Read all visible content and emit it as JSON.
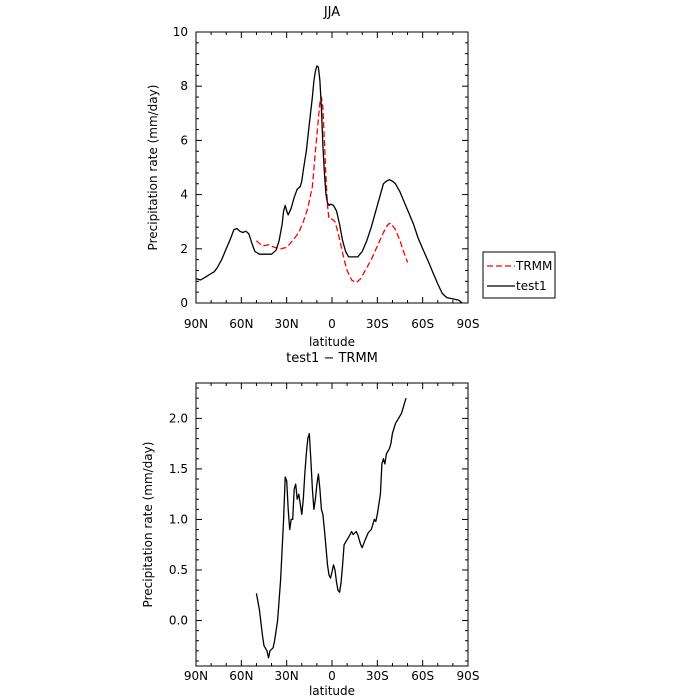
{
  "chart_data": [
    {
      "type": "line",
      "title": "JJA",
      "xlabel": "latitude",
      "ylabel": "Precipitation rate (mm/day)",
      "xlim": [
        90,
        -90
      ],
      "ylim": [
        0,
        10
      ],
      "x_ticks": [
        {
          "v": 90,
          "label": "90N"
        },
        {
          "v": 60,
          "label": "60N"
        },
        {
          "v": 30,
          "label": "30N"
        },
        {
          "v": 0,
          "label": "0"
        },
        {
          "v": -30,
          "label": "30S"
        },
        {
          "v": -60,
          "label": "60S"
        },
        {
          "v": -90,
          "label": "90S"
        }
      ],
      "y_ticks": [
        0,
        2,
        4,
        6,
        8,
        10
      ],
      "legend": "right",
      "series": [
        {
          "name": "TRMM",
          "color": "#ff0000",
          "dash": "dashed",
          "points": [
            [
              50,
              2.3
            ],
            [
              46,
              2.1
            ],
            [
              42,
              2.15
            ],
            [
              38,
              2.05
            ],
            [
              34,
              2.0
            ],
            [
              30,
              2.05
            ],
            [
              26,
              2.3
            ],
            [
              22,
              2.6
            ],
            [
              19,
              3.0
            ],
            [
              16,
              3.5
            ],
            [
              13,
              4.3
            ],
            [
              11,
              5.6
            ],
            [
              9,
              6.8
            ],
            [
              8,
              7.4
            ],
            [
              7,
              7.6
            ],
            [
              6,
              7.2
            ],
            [
              5,
              6.0
            ],
            [
              4,
              4.6
            ],
            [
              3,
              3.6
            ],
            [
              2,
              3.1
            ],
            [
              0,
              3.1
            ],
            [
              -2,
              3.0
            ],
            [
              -4,
              2.6
            ],
            [
              -6,
              2.1
            ],
            [
              -8,
              1.6
            ],
            [
              -10,
              1.2
            ],
            [
              -13,
              0.85
            ],
            [
              -16,
              0.75
            ],
            [
              -19,
              0.9
            ],
            [
              -22,
              1.2
            ],
            [
              -26,
              1.6
            ],
            [
              -30,
              2.1
            ],
            [
              -34,
              2.6
            ],
            [
              -37,
              2.9
            ],
            [
              -39,
              2.95
            ],
            [
              -42,
              2.7
            ],
            [
              -45,
              2.3
            ],
            [
              -48,
              1.8
            ],
            [
              -50,
              1.5
            ]
          ]
        },
        {
          "name": "test1",
          "color": "#000000",
          "dash": "solid",
          "points": [
            [
              90,
              0.9
            ],
            [
              87,
              0.85
            ],
            [
              84,
              0.95
            ],
            [
              81,
              1.05
            ],
            [
              78,
              1.15
            ],
            [
              76,
              1.3
            ],
            [
              73,
              1.6
            ],
            [
              70,
              2.0
            ],
            [
              67,
              2.4
            ],
            [
              65,
              2.7
            ],
            [
              63,
              2.75
            ],
            [
              61,
              2.65
            ],
            [
              59,
              2.6
            ],
            [
              57,
              2.65
            ],
            [
              55,
              2.55
            ],
            [
              53,
              2.2
            ],
            [
              51,
              1.9
            ],
            [
              48,
              1.8
            ],
            [
              44,
              1.8
            ],
            [
              40,
              1.8
            ],
            [
              37,
              1.95
            ],
            [
              35,
              2.3
            ],
            [
              33,
              2.9
            ],
            [
              32,
              3.4
            ],
            [
              31,
              3.6
            ],
            [
              30,
              3.4
            ],
            [
              29,
              3.25
            ],
            [
              27,
              3.5
            ],
            [
              25,
              3.9
            ],
            [
              23,
              4.2
            ],
            [
              21,
              4.3
            ],
            [
              20,
              4.5
            ],
            [
              19,
              4.9
            ],
            [
              17,
              5.6
            ],
            [
              15,
              6.6
            ],
            [
              13,
              7.6
            ],
            [
              12,
              8.2
            ],
            [
              11,
              8.55
            ],
            [
              10,
              8.75
            ],
            [
              9,
              8.7
            ],
            [
              8,
              8.2
            ],
            [
              7,
              7.2
            ],
            [
              6,
              5.8
            ],
            [
              5,
              4.8
            ],
            [
              4,
              4.0
            ],
            [
              3,
              3.7
            ],
            [
              2,
              3.6
            ],
            [
              1,
              3.65
            ],
            [
              -1,
              3.6
            ],
            [
              -3,
              3.4
            ],
            [
              -5,
              2.9
            ],
            [
              -7,
              2.3
            ],
            [
              -9,
              1.9
            ],
            [
              -11,
              1.7
            ],
            [
              -14,
              1.7
            ],
            [
              -17,
              1.7
            ],
            [
              -20,
              1.9
            ],
            [
              -23,
              2.3
            ],
            [
              -26,
              2.8
            ],
            [
              -29,
              3.4
            ],
            [
              -32,
              4.0
            ],
            [
              -34,
              4.4
            ],
            [
              -36,
              4.5
            ],
            [
              -38,
              4.55
            ],
            [
              -40,
              4.5
            ],
            [
              -42,
              4.4
            ],
            [
              -45,
              4.1
            ],
            [
              -48,
              3.7
            ],
            [
              -51,
              3.3
            ],
            [
              -54,
              2.9
            ],
            [
              -57,
              2.4
            ],
            [
              -60,
              2.0
            ],
            [
              -64,
              1.5
            ],
            [
              -67,
              1.1
            ],
            [
              -70,
              0.7
            ],
            [
              -73,
              0.35
            ],
            [
              -76,
              0.2
            ],
            [
              -80,
              0.15
            ],
            [
              -84,
              0.1
            ],
            [
              -86,
              0.0
            ]
          ]
        }
      ]
    },
    {
      "type": "line",
      "title": "test1 − TRMM",
      "xlabel": "latitude",
      "ylabel": "Precipitation rate (mm/day)",
      "xlim": [
        90,
        -90
      ],
      "ylim": [
        -0.45,
        2.35
      ],
      "x_ticks": [
        {
          "v": 90,
          "label": "90N"
        },
        {
          "v": 60,
          "label": "60N"
        },
        {
          "v": 30,
          "label": "30N"
        },
        {
          "v": 0,
          "label": "0"
        },
        {
          "v": -30,
          "label": "30S"
        },
        {
          "v": -60,
          "label": "60S"
        },
        {
          "v": -90,
          "label": "90S"
        }
      ],
      "y_ticks": [
        {
          "v": 0.0,
          "label": "0.0"
        },
        {
          "v": 0.5,
          "label": "0.5"
        },
        {
          "v": 1.0,
          "label": "1.0"
        },
        {
          "v": 1.5,
          "label": "1.5"
        },
        {
          "v": 2.0,
          "label": "2.0"
        }
      ],
      "series": [
        {
          "color": "#000000",
          "dash": "solid",
          "points": [
            [
              50,
              0.27
            ],
            [
              48,
              0.1
            ],
            [
              46,
              -0.15
            ],
            [
              45,
              -0.25
            ],
            [
              43,
              -0.3
            ],
            [
              42,
              -0.37
            ],
            [
              41,
              -0.3
            ],
            [
              39,
              -0.27
            ],
            [
              38,
              -0.2
            ],
            [
              36,
              0.0
            ],
            [
              34,
              0.4
            ],
            [
              32,
              1.0
            ],
            [
              31,
              1.42
            ],
            [
              30,
              1.38
            ],
            [
              29,
              1.1
            ],
            [
              28,
              0.9
            ],
            [
              27,
              1.0
            ],
            [
              26,
              1.0
            ],
            [
              25,
              1.3
            ],
            [
              24,
              1.35
            ],
            [
              23,
              1.2
            ],
            [
              22,
              1.25
            ],
            [
              21,
              1.15
            ],
            [
              20,
              1.05
            ],
            [
              19,
              1.2
            ],
            [
              18,
              1.45
            ],
            [
              17,
              1.65
            ],
            [
              16,
              1.8
            ],
            [
              15,
              1.85
            ],
            [
              14,
              1.6
            ],
            [
              13,
              1.3
            ],
            [
              12,
              1.1
            ],
            [
              11,
              1.2
            ],
            [
              10,
              1.35
            ],
            [
              9,
              1.45
            ],
            [
              8,
              1.3
            ],
            [
              7,
              1.1
            ],
            [
              6,
              1.05
            ],
            [
              5,
              0.9
            ],
            [
              4,
              0.72
            ],
            [
              3,
              0.55
            ],
            [
              2,
              0.45
            ],
            [
              1,
              0.42
            ],
            [
              0,
              0.48
            ],
            [
              -1,
              0.55
            ],
            [
              -2,
              0.5
            ],
            [
              -3,
              0.38
            ],
            [
              -4,
              0.3
            ],
            [
              -5,
              0.28
            ],
            [
              -6,
              0.38
            ],
            [
              -7,
              0.55
            ],
            [
              -8,
              0.75
            ],
            [
              -10,
              0.8
            ],
            [
              -12,
              0.85
            ],
            [
              -13,
              0.88
            ],
            [
              -14,
              0.85
            ],
            [
              -16,
              0.88
            ],
            [
              -17,
              0.85
            ],
            [
              -19,
              0.75
            ],
            [
              -20,
              0.72
            ],
            [
              -22,
              0.8
            ],
            [
              -24,
              0.87
            ],
            [
              -26,
              0.9
            ],
            [
              -28,
              1.0
            ],
            [
              -29,
              0.98
            ],
            [
              -30,
              1.05
            ],
            [
              -32,
              1.25
            ],
            [
              -33,
              1.55
            ],
            [
              -34,
              1.6
            ],
            [
              -35,
              1.55
            ],
            [
              -36,
              1.65
            ],
            [
              -38,
              1.7
            ],
            [
              -39,
              1.75
            ],
            [
              -40,
              1.85
            ],
            [
              -42,
              1.95
            ],
            [
              -44,
              2.0
            ],
            [
              -46,
              2.05
            ],
            [
              -48,
              2.15
            ],
            [
              -49,
              2.2
            ]
          ]
        }
      ]
    }
  ]
}
